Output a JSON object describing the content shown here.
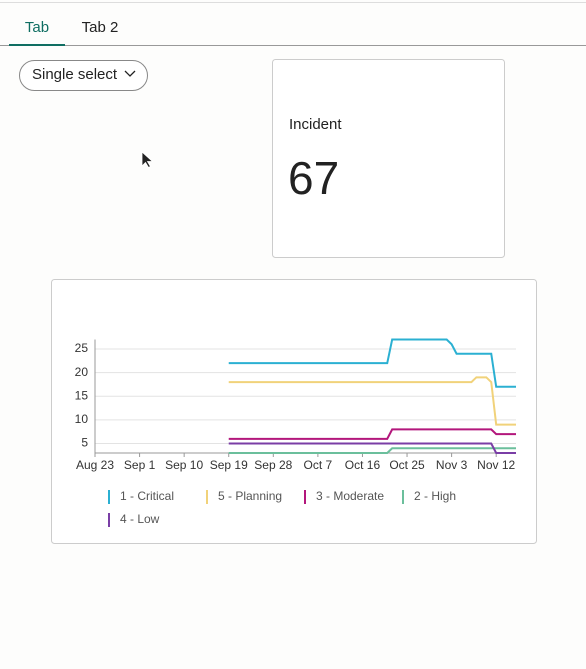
{
  "tabs": [
    "Tab",
    "Tab 2"
  ],
  "select": {
    "label": "Single select"
  },
  "card": {
    "title": "Incident",
    "value": 67
  },
  "chart_data": {
    "type": "line",
    "x": [
      "Sep 19",
      "Oct 21",
      "Oct 22",
      "Nov 2",
      "Nov 3",
      "Nov 4",
      "Nov 7",
      "Nov 8",
      "Nov 10",
      "Nov 11",
      "Nov 12",
      "Nov 16"
    ],
    "series": [
      {
        "name": "1 - Critical",
        "color": "#2bb0d2",
        "values": [
          22,
          22,
          27,
          27,
          26,
          24,
          24,
          24,
          24,
          24,
          17,
          17
        ]
      },
      {
        "name": "5 - Planning",
        "color": "#f1d27a",
        "values": [
          18,
          18,
          18,
          18,
          18,
          18,
          18,
          19,
          19,
          18,
          9,
          9
        ]
      },
      {
        "name": "3 - Moderate",
        "color": "#b3177c",
        "values": [
          6,
          6,
          8,
          8,
          8,
          8,
          8,
          8,
          8,
          8,
          7,
          7
        ]
      },
      {
        "name": "2 - High",
        "color": "#6bbf9c",
        "values": [
          3,
          3,
          4,
          4,
          4,
          4,
          4,
          4,
          4,
          4,
          4,
          4
        ]
      },
      {
        "name": "4 - Low",
        "color": "#7a3ea6",
        "values": [
          5,
          5,
          5,
          5,
          5,
          5,
          5,
          5,
          5,
          5,
          3,
          3
        ]
      }
    ],
    "xlim": [
      "Aug 23",
      "Nov 16"
    ],
    "xticks": [
      "Aug 23",
      "Sep 1",
      "Sep 10",
      "Sep 19",
      "Sep 28",
      "Oct 7",
      "Oct 16",
      "Oct 25",
      "Nov 3",
      "Nov 12"
    ],
    "ylim": [
      3,
      27
    ],
    "yticks": [
      5,
      10,
      15,
      20,
      25
    ],
    "grid": true
  }
}
